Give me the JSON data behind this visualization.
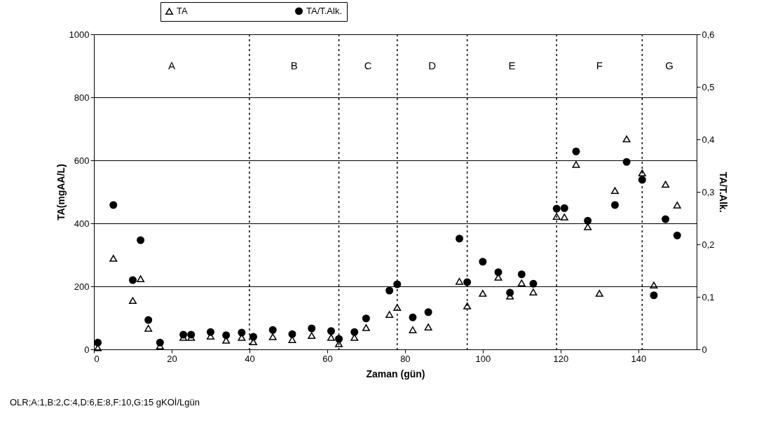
{
  "chart_data": {
    "type": "scatter",
    "xlabel": "Zaman (gün)",
    "ylabel": "TA(mgAA/L)",
    "y2label": "TA/T.Alk.",
    "xlim": [
      0,
      155
    ],
    "xticks": [
      0,
      20,
      40,
      60,
      80,
      100,
      120,
      140
    ],
    "ylim": [
      0,
      1000
    ],
    "yticks": [
      0,
      200,
      400,
      600,
      800,
      1000
    ],
    "y2lim": [
      0,
      0.6
    ],
    "y2ticks": [
      {
        "value": 0,
        "label": "0"
      },
      {
        "value": 0.1,
        "label": "0,1"
      },
      {
        "value": 0.2,
        "label": "0,2"
      },
      {
        "value": 0.3,
        "label": "0,3"
      },
      {
        "value": 0.4,
        "label": "0,4"
      },
      {
        "value": 0.5,
        "label": "0,5"
      },
      {
        "value": 0.6,
        "label": "0,6"
      }
    ],
    "grid": "y",
    "legend": "top",
    "series": [
      {
        "name": "TA",
        "color": "#000000",
        "marker": "triangle",
        "x": [
          1,
          5,
          10,
          12,
          14,
          17,
          23,
          25,
          30,
          34,
          38,
          41,
          46,
          51,
          56,
          61,
          63,
          67,
          70,
          76,
          78,
          82,
          86,
          94,
          96,
          100,
          104,
          107,
          110,
          113,
          119,
          121,
          124,
          127,
          130,
          134,
          137,
          141,
          144,
          147,
          150
        ],
        "values": [
          5,
          289,
          155,
          224,
          67,
          11,
          38,
          38,
          42,
          29,
          38,
          24,
          40,
          31,
          44,
          38,
          18,
          38,
          69,
          111,
          133,
          62,
          71,
          216,
          138,
          178,
          229,
          169,
          211,
          182,
          422,
          420,
          587,
          389,
          178,
          504,
          668,
          560,
          204,
          524,
          458
        ]
      },
      {
        "name": "TA/T.Alk.",
        "color": "#000000",
        "marker": "circle",
        "axis": "y2",
        "x": [
          1,
          5,
          10,
          12,
          14,
          17,
          23,
          25,
          30,
          34,
          38,
          41,
          46,
          51,
          56,
          61,
          63,
          67,
          70,
          76,
          78,
          82,
          86,
          94,
          96,
          100,
          104,
          107,
          110,
          113,
          119,
          121,
          124,
          127,
          134,
          137,
          141,
          144,
          147,
          150
        ],
        "values": [
          0.013,
          0.275,
          0.132,
          0.208,
          0.056,
          0.013,
          0.028,
          0.028,
          0.033,
          0.027,
          0.032,
          0.024,
          0.037,
          0.029,
          0.04,
          0.035,
          0.02,
          0.033,
          0.059,
          0.112,
          0.124,
          0.061,
          0.071,
          0.211,
          0.128,
          0.167,
          0.147,
          0.108,
          0.143,
          0.125,
          0.268,
          0.269,
          0.377,
          0.245,
          0.275,
          0.357,
          0.323,
          0.103,
          0.248,
          0.217
        ]
      }
    ],
    "ref_lines": [
      {
        "axis": "x",
        "value": 40,
        "line_style": "dotted",
        "color": "#000000"
      },
      {
        "axis": "x",
        "value": 63,
        "line_style": "dotted",
        "color": "#000000"
      },
      {
        "axis": "x",
        "value": 78,
        "line_style": "dotted",
        "color": "#000000"
      },
      {
        "axis": "x",
        "value": 96,
        "line_style": "dotted",
        "color": "#000000"
      },
      {
        "axis": "x",
        "value": 119,
        "line_style": "dotted",
        "color": "#000000"
      },
      {
        "axis": "x",
        "value": 141,
        "line_style": "dotted",
        "color": "#000000"
      }
    ],
    "annotations": [
      "A",
      "B",
      "C",
      "D",
      "E",
      "F",
      "G",
      "OLR;A:1,B:2,C:4,D:6,E:8,F:10,G:15 gKOİ/Lgün"
    ]
  }
}
